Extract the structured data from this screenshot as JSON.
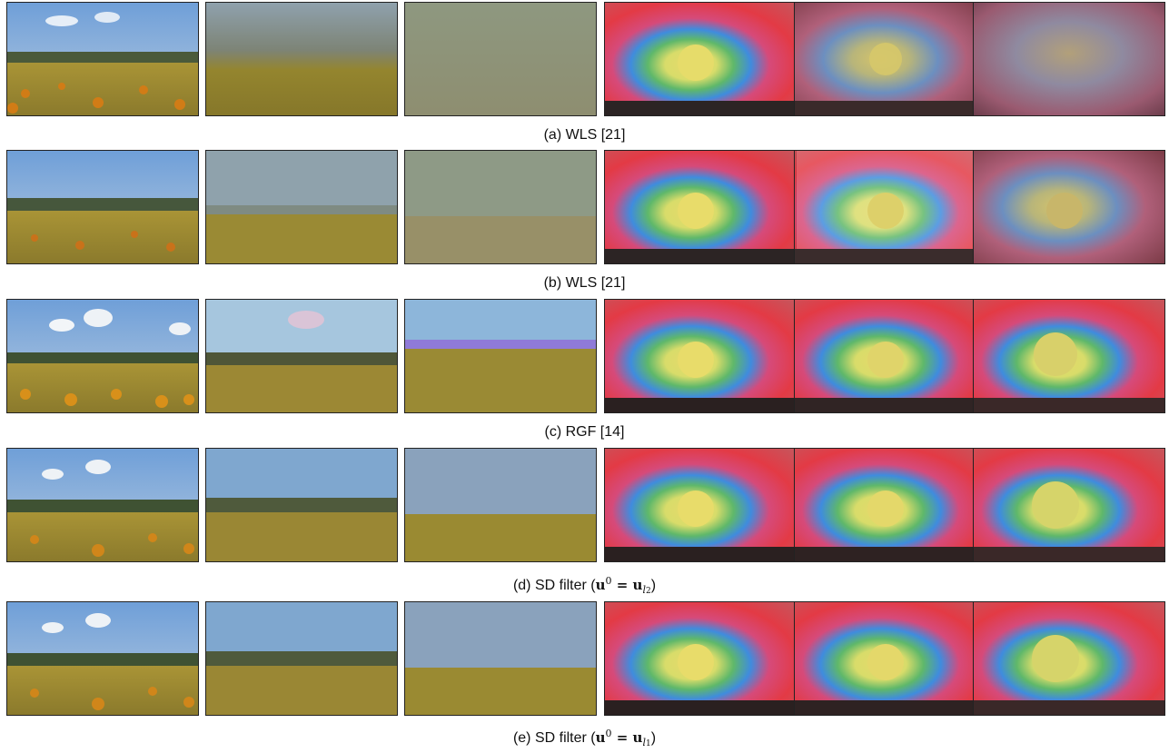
{
  "figure": {
    "rows": [
      {
        "caption_label": "(a) WLS [21]",
        "math": ""
      },
      {
        "caption_label": "(b) WLS [21]",
        "math": ""
      },
      {
        "caption_label": "(c) RGF [14]",
        "math": ""
      },
      {
        "caption_label": "(d) SD filter (",
        "math": "u",
        "sup": "0",
        "eq": " = u",
        "sub": "l",
        "subsub": "2",
        "close": ")"
      },
      {
        "caption_label": "(e) SD filter (",
        "math": "u",
        "sup": "0",
        "eq": " = u",
        "sub": "l",
        "subsub": "1",
        "close": ")"
      }
    ]
  }
}
